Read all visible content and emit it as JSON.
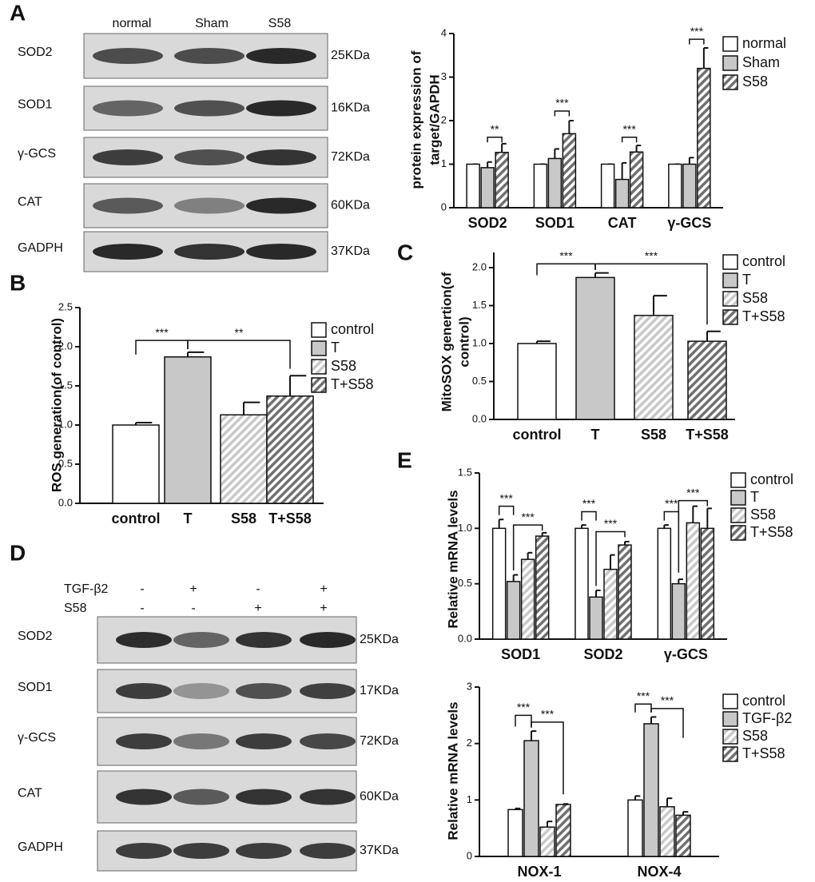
{
  "panel_labels": [
    "A",
    "B",
    "C",
    "D",
    "E"
  ],
  "blot_a": {
    "lanes": [
      "normal",
      "Sham",
      "S58"
    ],
    "rows": [
      {
        "protein": "SOD2",
        "size": "25KDa"
      },
      {
        "protein": "SOD1",
        "size": "16KDa"
      },
      {
        "protein": "γ-GCS",
        "size": "72KDa"
      },
      {
        "protein": "CAT",
        "size": "60KDa"
      },
      {
        "protein": "GADPH",
        "size": "37KDa"
      }
    ]
  },
  "blot_d": {
    "treatments": [
      {
        "label": "TGF-β2",
        "signs": [
          "-",
          "+",
          "-",
          "+"
        ]
      },
      {
        "label": "S58",
        "signs": [
          "-",
          "-",
          "+",
          "+"
        ]
      }
    ],
    "rows": [
      {
        "protein": "SOD2",
        "size": "25KDa"
      },
      {
        "protein": "SOD1",
        "size": "17KDa"
      },
      {
        "protein": "γ-GCS",
        "size": "72KDa"
      },
      {
        "protein": "CAT",
        "size": "60KDa"
      },
      {
        "protein": "GADPH",
        "size": "37KDa"
      }
    ]
  },
  "chart_data": [
    {
      "type": "grouped-bar",
      "y_label": [
        "protein expression of",
        "target/GAPDH"
      ],
      "categories": [
        "SOD2",
        "SOD1",
        "CAT",
        "γ-GCS"
      ],
      "series": [
        {
          "name": "normal",
          "color": "#ffffff",
          "hatched": false,
          "values": [
            1,
            1,
            1,
            1
          ],
          "errors": [
            0,
            0,
            0,
            0
          ]
        },
        {
          "name": "Sham",
          "color": "#c8c8c8",
          "hatched": false,
          "values": [
            0.92,
            1.13,
            0.65,
            1.0
          ],
          "errors": [
            0.13,
            0.22,
            0.38,
            0.15
          ]
        },
        {
          "name": "S58",
          "color": "#707070",
          "hatched": true,
          "values": [
            1.27,
            1.7,
            1.28,
            3.2
          ],
          "errors": [
            0.2,
            0.3,
            0.15,
            0.47
          ]
        }
      ],
      "ylim": [
        0,
        4
      ],
      "yticks": [
        0,
        1,
        2,
        3,
        4
      ],
      "annotations": [
        "**",
        "***",
        "***",
        "***"
      ]
    },
    {
      "type": "bar",
      "y_label": [
        "ROS generation(of control)"
      ],
      "categories": [
        "control",
        "T",
        "S58",
        "T+S58"
      ],
      "values": [
        1.0,
        1.87,
        1.13,
        1.37
      ],
      "errors": [
        0.03,
        0.06,
        0.16,
        0.26
      ],
      "colors": [
        "#ffffff",
        "#c8c8c8",
        "#c8c8c8",
        "#707070"
      ],
      "hatched": [
        false,
        false,
        true,
        true
      ],
      "ylim": [
        0,
        2.5
      ],
      "yticks": [
        {
          "value": 0,
          "label": "0.0"
        },
        {
          "value": 0.5,
          "label": "0.5"
        },
        {
          "value": 1,
          "label": "1.0"
        },
        {
          "value": 1.5,
          "label": "1.5"
        },
        {
          "value": 2,
          "label": "2.0"
        },
        {
          "value": 2.5,
          "label": "2.5"
        }
      ],
      "annotations": [
        "***",
        "**"
      ]
    },
    {
      "type": "bar",
      "y_label": [
        "MitoSOX genertion(of",
        "control)"
      ],
      "categories": [
        "control",
        "T",
        "S58",
        "T+S58"
      ],
      "values": [
        1.0,
        1.87,
        1.37,
        1.03
      ],
      "errors": [
        0.03,
        0.06,
        0.26,
        0.13
      ],
      "colors": [
        "#ffffff",
        "#c8c8c8",
        "#c8c8c8",
        "#707070"
      ],
      "hatched": [
        false,
        false,
        true,
        true
      ],
      "ylim": [
        0,
        2.2
      ],
      "yticks": [
        {
          "value": 0,
          "label": "0.0"
        },
        {
          "value": 0.5,
          "label": "0.5"
        },
        {
          "value": 1,
          "label": "1.0"
        },
        {
          "value": 1.5,
          "label": "1.5"
        },
        {
          "value": 2,
          "label": "2.0"
        }
      ],
      "annotations": [
        "***",
        "***"
      ]
    },
    {
      "type": "grouped-bar",
      "y_label": [
        "Relative mRNA levels"
      ],
      "categories": [
        "SOD1",
        "SOD2",
        "γ-GCS"
      ],
      "series": [
        {
          "name": "control",
          "color": "#ffffff",
          "hatched": false,
          "values": [
            1.0,
            1.0,
            1.0
          ],
          "errors": [
            0.08,
            0.03,
            0.03
          ]
        },
        {
          "name": "T",
          "color": "#c8c8c8",
          "hatched": false,
          "values": [
            0.52,
            0.38,
            0.5
          ],
          "errors": [
            0.06,
            0.06,
            0.04
          ]
        },
        {
          "name": "S58",
          "color": "#c8c8c8",
          "hatched": true,
          "values": [
            0.72,
            0.63,
            1.05
          ],
          "errors": [
            0.06,
            0.13,
            0.15
          ]
        },
        {
          "name": "T+S58",
          "color": "#707070",
          "hatched": true,
          "values": [
            0.93,
            0.85,
            1.0
          ],
          "errors": [
            0.03,
            0.03,
            0.18
          ]
        }
      ],
      "ylim": [
        0,
        1.5
      ],
      "yticks": [
        {
          "value": 0,
          "label": "0.0"
        },
        {
          "value": 0.5,
          "label": "0.5"
        },
        {
          "value": 1,
          "label": "1.0"
        },
        {
          "value": 1.5,
          "label": "1.5"
        }
      ],
      "annotations": [
        "***",
        "***",
        "***",
        "***",
        "***",
        "***"
      ]
    },
    {
      "type": "grouped-bar",
      "y_label": [
        "Relative mRNA levels"
      ],
      "categories": [
        "NOX-1",
        "NOX-4"
      ],
      "series": [
        {
          "name": "control",
          "color": "#ffffff",
          "hatched": false,
          "values": [
            0.83,
            1.0
          ],
          "errors": [
            0.02,
            0.07
          ]
        },
        {
          "name": "TGF-β2",
          "color": "#c8c8c8",
          "hatched": false,
          "values": [
            2.05,
            2.35
          ],
          "errors": [
            0.17,
            0.12
          ]
        },
        {
          "name": "S58",
          "color": "#c8c8c8",
          "hatched": true,
          "values": [
            0.52,
            0.88
          ],
          "errors": [
            0.1,
            0.15
          ]
        },
        {
          "name": "T+S58",
          "color": "#707070",
          "hatched": true,
          "values": [
            0.92,
            0.73
          ],
          "errors": [
            0.01,
            0.06
          ]
        }
      ],
      "ylim": [
        0,
        3
      ],
      "yticks": [
        0,
        1,
        2,
        3
      ],
      "annotations": [
        "***",
        "***",
        "***",
        "***"
      ]
    }
  ]
}
